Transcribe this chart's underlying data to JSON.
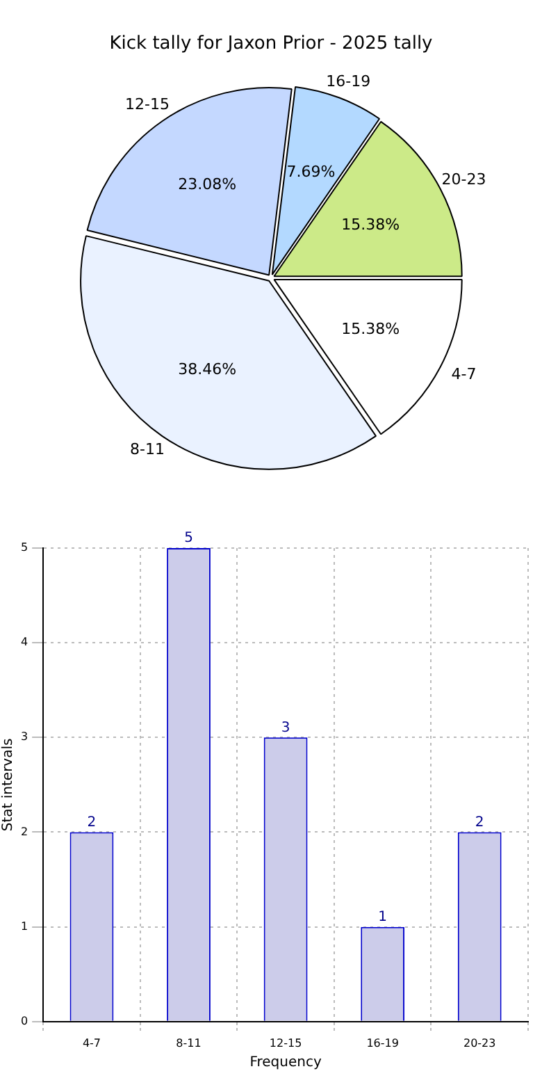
{
  "chart_data": [
    {
      "type": "pie",
      "title": "Kick tally for Jaxon Prior - 2025 tally",
      "categories": [
        "4-7",
        "8-11",
        "12-15",
        "16-19",
        "20-23"
      ],
      "values": [
        15.38,
        38.46,
        23.08,
        7.69,
        15.38
      ],
      "value_labels": [
        "15.38%",
        "38.46%",
        "23.08%",
        "7.69%",
        "15.38%"
      ],
      "colors": [
        "#ffffff",
        "#eaf2ff",
        "#c4d8ff",
        "#b3d9ff",
        "#ccea88"
      ],
      "legend": false
    },
    {
      "type": "bar",
      "categories": [
        "4-7",
        "8-11",
        "12-15",
        "16-19",
        "20-23"
      ],
      "values": [
        2,
        5,
        3,
        1,
        2
      ],
      "color": "#ccccea",
      "xlabel": "Frequency",
      "ylabel": "Stat intervals",
      "ylim": [
        0,
        5
      ],
      "yticks": [
        0,
        1,
        2,
        3,
        4,
        5
      ],
      "grid": true,
      "data_labels": true,
      "legend": false
    }
  ]
}
